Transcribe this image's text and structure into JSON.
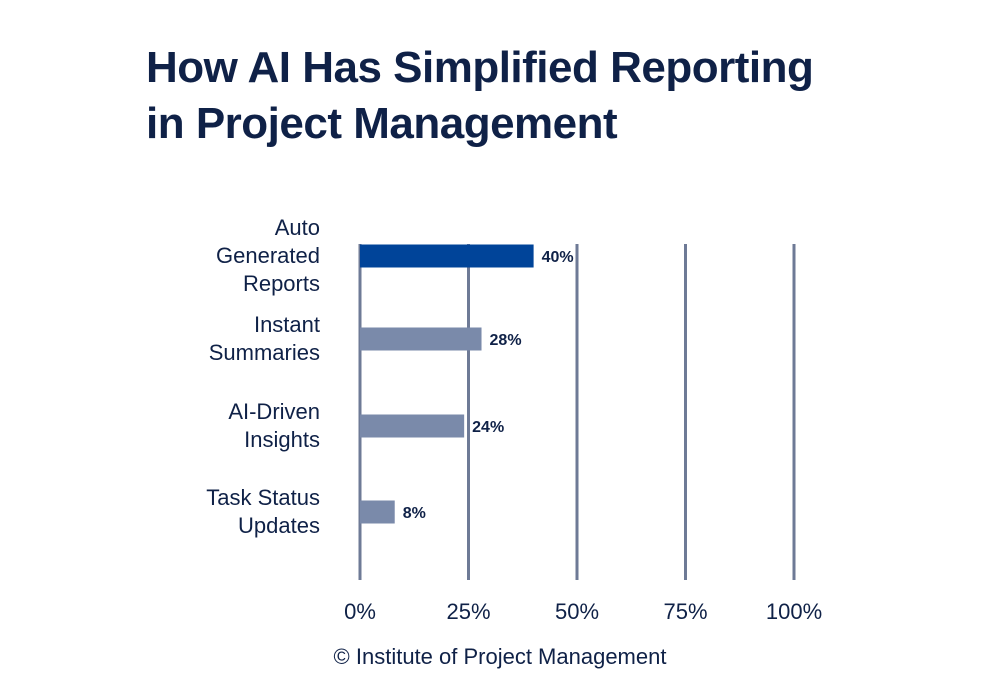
{
  "title_lines": [
    "How AI Has Simplified Reporting",
    "in Project Management"
  ],
  "credit": "© Institute of Project Management",
  "colors": {
    "highlight": "#004499",
    "bar": "#7a8aaa",
    "grid": "#6e7a96",
    "text": "#0f2147"
  },
  "chart_data": {
    "type": "bar",
    "orientation": "horizontal",
    "categories": [
      [
        "Auto",
        "Generated",
        "Reports"
      ],
      [
        "Instant",
        "Summaries"
      ],
      [
        "AI-Driven",
        "Insights"
      ],
      [
        "Task Status",
        "Updates"
      ]
    ],
    "values": [
      40,
      28,
      24,
      8
    ],
    "data_labels": [
      "40%",
      "28%",
      "24%",
      "8%"
    ],
    "highlight_index": 0,
    "xlim": [
      0,
      100
    ],
    "xticks": [
      0,
      25,
      50,
      75,
      100
    ],
    "xtick_labels": [
      "0%",
      "25%",
      "50%",
      "75%",
      "100%"
    ],
    "grid": true
  }
}
